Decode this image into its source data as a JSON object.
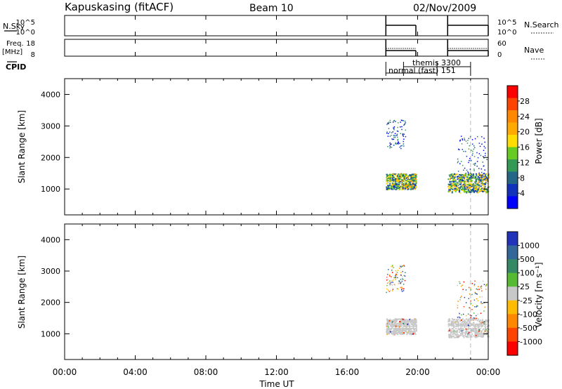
{
  "header": {
    "station": "Kapuskasing (fitACF)",
    "beam": "Beam 10",
    "date": "02/Nov/2009"
  },
  "panel_noise": {
    "left_label": "N.Sky",
    "left_ticks": [
      "10^5",
      "10^0"
    ],
    "right_label": "N.Search",
    "right_ticks": [
      "10^5",
      "10^0"
    ]
  },
  "panel_freq": {
    "left_label_1": "Freq.",
    "left_label_2": "[MHz]",
    "left_ticks": [
      "18",
      "8"
    ],
    "right_label": "Nave",
    "right_ticks": [
      "60",
      "0"
    ]
  },
  "panel_cpid": {
    "label": "CPID",
    "programs": [
      "themis 3300",
      "normal (fast) 151"
    ]
  },
  "power_panel": {
    "ylabel": "Slant Range [km]",
    "yticks": [
      "4000",
      "3000",
      "2000",
      "1000"
    ],
    "colorbar_label": "Power [dB]",
    "colorbar_ticks": [
      "28",
      "24",
      "20",
      "16",
      "12",
      "8",
      "4"
    ],
    "colorbar_colors": [
      "#ff0000",
      "#ff4400",
      "#ff8800",
      "#ffaa00",
      "#ffdd00",
      "#66cc22",
      "#339955",
      "#226688",
      "#1133bb",
      "#0000ff"
    ]
  },
  "velocity_panel": {
    "ylabel": "Slant Range [km]",
    "yticks": [
      "4000",
      "3000",
      "2000",
      "1000"
    ],
    "colorbar_label": "Velocity [m s⁻¹]",
    "colorbar_ticks": [
      "1000",
      "500",
      "100",
      "25",
      "-25",
      "-100",
      "-500",
      "-1000"
    ],
    "colorbar_colors": [
      "#2233bb",
      "#336699",
      "#338866",
      "#55bb33",
      "#c8c8c8",
      "#ffbb00",
      "#ff8800",
      "#ff4400",
      "#ff0000"
    ]
  },
  "x_axis": {
    "label": "Time UT",
    "ticks": [
      "00:00",
      "04:00",
      "08:00",
      "12:00",
      "16:00",
      "20:00",
      "00:00"
    ]
  },
  "chart_data": {
    "type": "heatmap",
    "x_range_hours": [
      0,
      24
    ],
    "y_range_km": [
      180,
      4500
    ],
    "operating_intervals_hours": [
      [
        18.2,
        19.9
      ],
      [
        21.7,
        24.0
      ]
    ],
    "programs": [
      {
        "name": "normal (fast) 151",
        "start_hour": 18.2,
        "end_hour": 21.1
      },
      {
        "name": "themis 3300",
        "start_hour": 19.2,
        "end_hour": 23.0
      }
    ],
    "echo_regions": [
      {
        "t_start": 18.2,
        "t_end": 19.9,
        "range_low_km": 1000,
        "range_high_km": 1500
      },
      {
        "t_start": 21.7,
        "t_end": 24.0,
        "range_low_km": 900,
        "range_high_km": 1500
      },
      {
        "t_start": 18.2,
        "t_end": 19.3,
        "range_low_km": 2300,
        "range_high_km": 3200
      },
      {
        "t_start": 22.2,
        "t_end": 23.9,
        "range_low_km": 1500,
        "range_high_km": 2700
      }
    ],
    "power_db_range": [
      0,
      30
    ],
    "velocity_range_ms": [
      -1000,
      1000
    ]
  }
}
